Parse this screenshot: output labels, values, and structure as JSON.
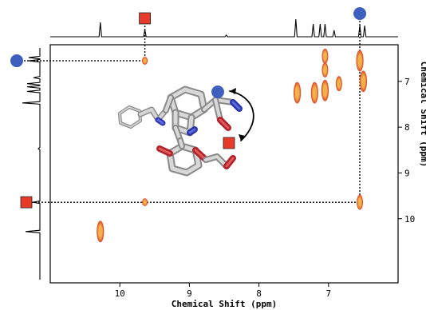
{
  "chart_data": {
    "type": "heatmap",
    "title": "",
    "xlabel": "Chemical Shift (ppm)",
    "ylabel": "Chemical Shift (ppm)",
    "x_axis": {
      "reversed": true,
      "ticks": [
        10,
        9,
        8,
        7
      ],
      "range": [
        11.0,
        6.0
      ]
    },
    "y_axis": {
      "reversed": true,
      "ticks": [
        7,
        8,
        9,
        10
      ],
      "range": [
        6.2,
        11.4
      ]
    },
    "grid": false,
    "markers": [
      {
        "shape": "circle",
        "color": "#3f5fbf",
        "x": 6.55,
        "y": 6.55
      },
      {
        "shape": "square",
        "color": "#e63b2a",
        "x": 9.64,
        "y": 9.64
      }
    ],
    "cross_peaks": [
      {
        "x": 9.64,
        "y": 6.55,
        "intensity": "weak"
      },
      {
        "x": 9.64,
        "y": 9.64,
        "intensity": "weak"
      },
      {
        "x": 6.55,
        "y": 9.64,
        "intensity": "medium"
      },
      {
        "x": 10.28,
        "y": 10.28,
        "intensity": "strong"
      },
      {
        "x": 6.55,
        "y": 6.55,
        "intensity": "strong"
      },
      {
        "x": 6.5,
        "y": 7.0,
        "intensity": "strong"
      },
      {
        "x": 6.85,
        "y": 7.05,
        "intensity": "medium"
      },
      {
        "x": 7.05,
        "y": 6.45,
        "intensity": "medium"
      },
      {
        "x": 7.05,
        "y": 6.75,
        "intensity": "medium"
      },
      {
        "x": 7.05,
        "y": 7.2,
        "intensity": "strong"
      },
      {
        "x": 7.2,
        "y": 7.25,
        "intensity": "strong"
      },
      {
        "x": 7.45,
        "y": 7.25,
        "intensity": "strong"
      }
    ],
    "projection_peaks_ppm": [
      10.28,
      9.64,
      8.47,
      7.47,
      7.22,
      7.12,
      7.05,
      6.92,
      6.55,
      6.48
    ]
  },
  "colors": {
    "marker_circle": "#3f5fbf",
    "marker_square": "#e63b2a",
    "peak_core": "#f2b04a",
    "peak_edge": "#e0502a"
  },
  "molecule": {
    "depiction": "stick-model",
    "annotation_arrow": "double-headed-curved"
  }
}
